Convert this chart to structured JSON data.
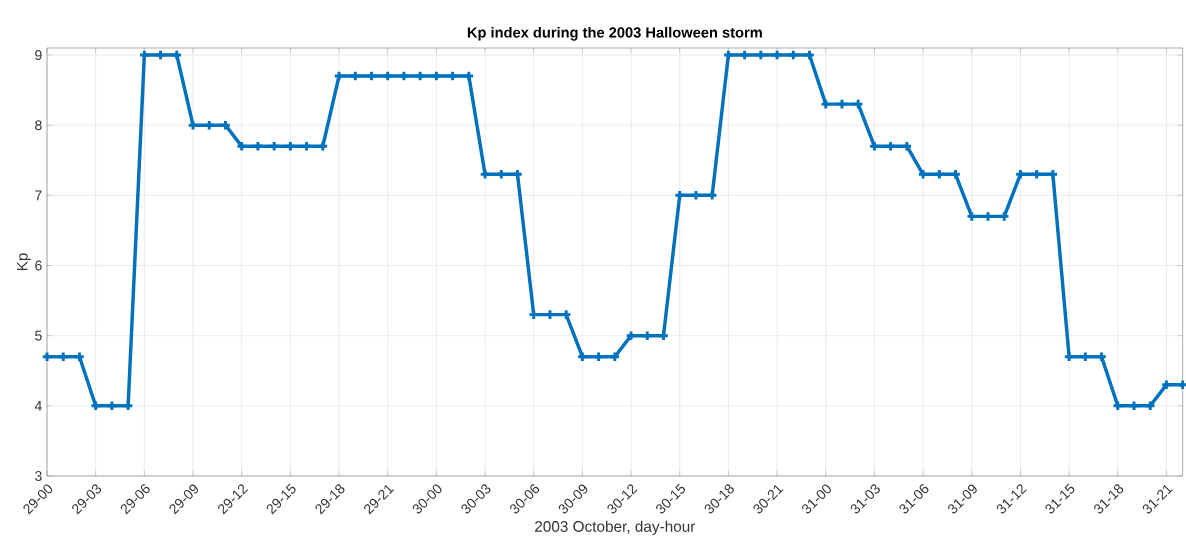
{
  "chart_data": {
    "type": "line",
    "title": "Kp index during the 2003 Halloween storm",
    "xlabel": "2003 October, day-hour",
    "ylabel": "Kp",
    "categories": [
      "29-00",
      null,
      null,
      "29-03",
      null,
      null,
      "29-06",
      null,
      null,
      "29-09",
      null,
      null,
      "29-12",
      null,
      null,
      "29-15",
      null,
      null,
      "29-18",
      null,
      null,
      "29-21",
      null,
      null,
      "30-00",
      null,
      null,
      "30-03",
      null,
      null,
      "30-06",
      null,
      null,
      "30-09",
      null,
      null,
      "30-12",
      null,
      null,
      "30-15",
      null,
      null,
      "30-18",
      null,
      null,
      "30-21",
      null,
      null,
      "31-00",
      null,
      null,
      "31-03",
      null,
      null,
      "31-06",
      null,
      null,
      "31-09",
      null,
      null,
      "31-12",
      null,
      null,
      "31-15",
      null,
      null,
      "31-18",
      null,
      null,
      "31-21",
      null
    ],
    "series": [
      {
        "color": "#0072bd",
        "values": [
          4.7,
          4.7,
          4.7,
          4.0,
          4.0,
          4.0,
          9.0,
          9.0,
          9.0,
          8.0,
          8.0,
          8.0,
          7.7,
          7.7,
          7.7,
          7.7,
          7.7,
          7.7,
          8.7,
          8.7,
          8.7,
          8.7,
          8.7,
          8.7,
          8.7,
          8.7,
          8.7,
          7.3,
          7.3,
          7.3,
          5.3,
          5.3,
          5.3,
          4.7,
          4.7,
          4.7,
          5.0,
          5.0,
          5.0,
          7.0,
          7.0,
          7.0,
          9.0,
          9.0,
          9.0,
          9.0,
          9.0,
          9.0,
          8.3,
          8.3,
          8.3,
          7.7,
          7.7,
          7.7,
          7.3,
          7.3,
          7.3,
          6.7,
          6.7,
          6.7,
          7.3,
          7.3,
          7.3,
          4.7,
          4.7,
          4.7,
          4.0,
          4.0,
          4.0,
          4.3,
          4.3
        ]
      }
    ],
    "ylim": [
      3,
      9.1
    ],
    "yticks": [
      3,
      4,
      5,
      6,
      7,
      8,
      9
    ],
    "grid": true,
    "marker": "cross",
    "line_style": "solid"
  }
}
